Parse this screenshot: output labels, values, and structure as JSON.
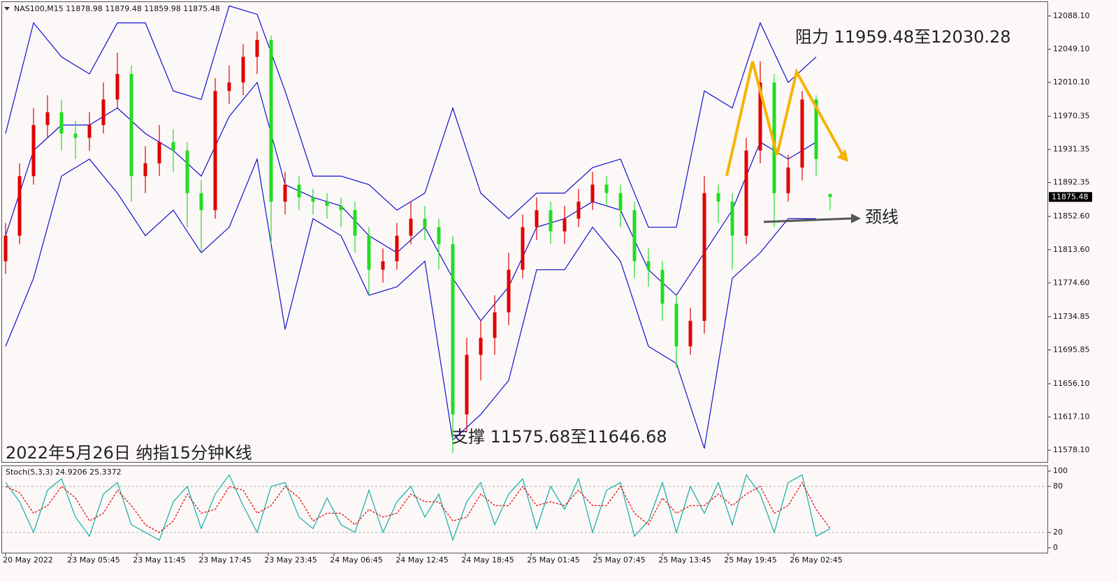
{
  "chart_data": {
    "type": "candlestick",
    "symbol": "NAS100,M15",
    "caption": "2022年5月26日 纳指15分钟K线",
    "annotations": {
      "resistance": "阻力 11959.48至12030.28",
      "support": "支撑 11575.68至11646.68",
      "neckline": "颈线"
    },
    "up_color": "#e00000",
    "down_color": "#22dd22",
    "band_color": "#1010cc",
    "ylim": [
      11564.2,
      12104.4
    ],
    "yticks": [
      {
        "value": 12088.1,
        "label": "12088.10"
      },
      {
        "value": 12049.1,
        "label": "12049.10"
      },
      {
        "value": 12010.1,
        "label": "12010.10"
      },
      11970.35,
      11931.35,
      11892.35,
      {
        "value": 11852.6,
        "label": "11852.60"
      },
      {
        "value": 11813.6,
        "label": "11813.60"
      },
      {
        "value": 11774.6,
        "label": "11774.60"
      },
      11734.85,
      11695.85,
      {
        "value": 11656.1,
        "label": "11656.10"
      },
      {
        "value": 11617.1,
        "label": "11617.10"
      },
      {
        "value": 11578.1,
        "label": "11578.10"
      }
    ],
    "time_labels": [
      "20 May 2022",
      "23 May 05:45",
      "23 May 11:45",
      "23 May 17:45",
      "23 May 23:45",
      "24 May 06:45",
      "24 May 12:45",
      "24 May 18:45",
      "25 May 01:45",
      "25 May 07:45",
      "25 May 13:45",
      "25 May 19:45",
      "26 May 02:45"
    ],
    "open": [
      11800,
      11830,
      11900,
      11960,
      11975,
      11950,
      11945,
      11960,
      11990,
      12020,
      11900,
      11915,
      11940,
      11930,
      11880,
      11860,
      12000,
      12010,
      12040,
      12060,
      11870,
      11890,
      11875,
      11870,
      11865,
      11860,
      11830,
      11790,
      11800,
      11830,
      11850,
      11840,
      11820,
      11620,
      11690,
      11710,
      11740,
      11790,
      11840,
      11860,
      11835,
      11850,
      11870,
      11890,
      11880,
      11860,
      11800,
      11790,
      11750,
      11700,
      11730,
      11880,
      11870,
      11830,
      11930,
      12010,
      11880,
      11910,
      11990,
      11878.98
    ],
    "high": [
      11845,
      11915,
      11980,
      11995,
      11990,
      11965,
      11975,
      12010,
      12045,
      12030,
      11935,
      11960,
      11955,
      11940,
      11895,
      12015,
      12030,
      12055,
      12070,
      12065,
      11905,
      11900,
      11885,
      11880,
      11875,
      11870,
      11840,
      11815,
      11845,
      11870,
      11865,
      11850,
      11830,
      11710,
      11730,
      11760,
      11810,
      11855,
      11875,
      11870,
      11865,
      11885,
      11905,
      11900,
      11890,
      11870,
      11815,
      11800,
      11760,
      11745,
      11900,
      11890,
      11880,
      11945,
      12035,
      12020,
      11925,
      12000,
      11995,
      11879.48
    ],
    "low": [
      11785,
      11820,
      11890,
      11945,
      11930,
      11920,
      11930,
      11950,
      11980,
      11870,
      11880,
      11900,
      11905,
      11840,
      11810,
      11850,
      11985,
      11995,
      12020,
      11820,
      11855,
      11860,
      11855,
      11850,
      11840,
      11810,
      11760,
      11775,
      11790,
      11820,
      11825,
      11790,
      11575,
      11600,
      11660,
      11690,
      11725,
      11780,
      11825,
      11820,
      11820,
      11840,
      11860,
      11865,
      11840,
      11780,
      11770,
      11730,
      11675,
      11690,
      11715,
      11845,
      11790,
      11820,
      11915,
      11840,
      11870,
      11895,
      11900,
      11859.98
    ],
    "close": [
      11830,
      11900,
      11960,
      11975,
      11950,
      11945,
      11960,
      11990,
      12020,
      11900,
      11915,
      11940,
      11930,
      11880,
      11860,
      12000,
      12010,
      12040,
      12060,
      11870,
      11890,
      11875,
      11870,
      11865,
      11860,
      11830,
      11790,
      11800,
      11830,
      11850,
      11840,
      11820,
      11620,
      11690,
      11710,
      11740,
      11790,
      11840,
      11860,
      11835,
      11850,
      11870,
      11890,
      11880,
      11860,
      11800,
      11790,
      11750,
      11700,
      11730,
      11880,
      11870,
      11830,
      11930,
      12010,
      11880,
      11910,
      11990,
      11920,
      11875.48
    ],
    "bollinger": {
      "upper": [
        11950,
        12080,
        12040,
        12020,
        12080,
        12080,
        12000,
        11990,
        12100,
        12090,
        12000,
        11900,
        11900,
        11890,
        11860,
        11880,
        11980,
        11880,
        11850,
        11880,
        11880,
        11910,
        11920,
        11840,
        11840,
        12000,
        11980,
        12080,
        12010,
        12040
      ],
      "middle": [
        11830,
        11930,
        11960,
        11960,
        11980,
        11950,
        11930,
        11900,
        11970,
        12010,
        11890,
        11875,
        11865,
        11830,
        11810,
        11840,
        11780,
        11730,
        11770,
        11840,
        11850,
        11870,
        11860,
        11790,
        11760,
        11810,
        11860,
        11940,
        11920,
        11940
      ],
      "lower": [
        11700,
        11780,
        11900,
        11920,
        11880,
        11830,
        11860,
        11810,
        11840,
        11920,
        11720,
        11850,
        11830,
        11760,
        11770,
        11800,
        11590,
        11620,
        11660,
        11790,
        11790,
        11840,
        11800,
        11700,
        11680,
        11580,
        11780,
        11810,
        11850,
        11850
      ]
    },
    "stoch": {
      "name": "Stoch(5,3,3)",
      "k_color": "#20b2aa",
      "d_color": "#e01010",
      "ylim": [
        -6.4,
        107.3
      ],
      "yticks": [
        100,
        80,
        20,
        0
      ],
      "levels": [
        80,
        20
      ],
      "k": [
        85,
        60,
        20,
        75,
        90,
        40,
        15,
        70,
        85,
        30,
        20,
        10,
        60,
        80,
        25,
        70,
        95,
        55,
        20,
        80,
        85,
        40,
        25,
        65,
        30,
        20,
        75,
        20,
        60,
        80,
        40,
        70,
        10,
        60,
        85,
        30,
        70,
        90,
        25,
        80,
        50,
        90,
        20,
        75,
        85,
        15,
        35,
        85,
        20,
        80,
        45,
        85,
        30,
        95,
        70,
        20,
        85,
        95,
        15,
        24.9206
      ],
      "d": [
        80,
        72,
        45,
        55,
        80,
        65,
        35,
        45,
        75,
        55,
        30,
        20,
        35,
        70,
        45,
        50,
        80,
        75,
        45,
        55,
        80,
        65,
        35,
        45,
        45,
        30,
        50,
        40,
        45,
        70,
        60,
        60,
        35,
        40,
        70,
        55,
        55,
        80,
        55,
        60,
        55,
        75,
        55,
        55,
        80,
        45,
        30,
        65,
        45,
        55,
        55,
        70,
        55,
        70,
        80,
        45,
        55,
        85,
        50,
        25.3372
      ]
    }
  }
}
